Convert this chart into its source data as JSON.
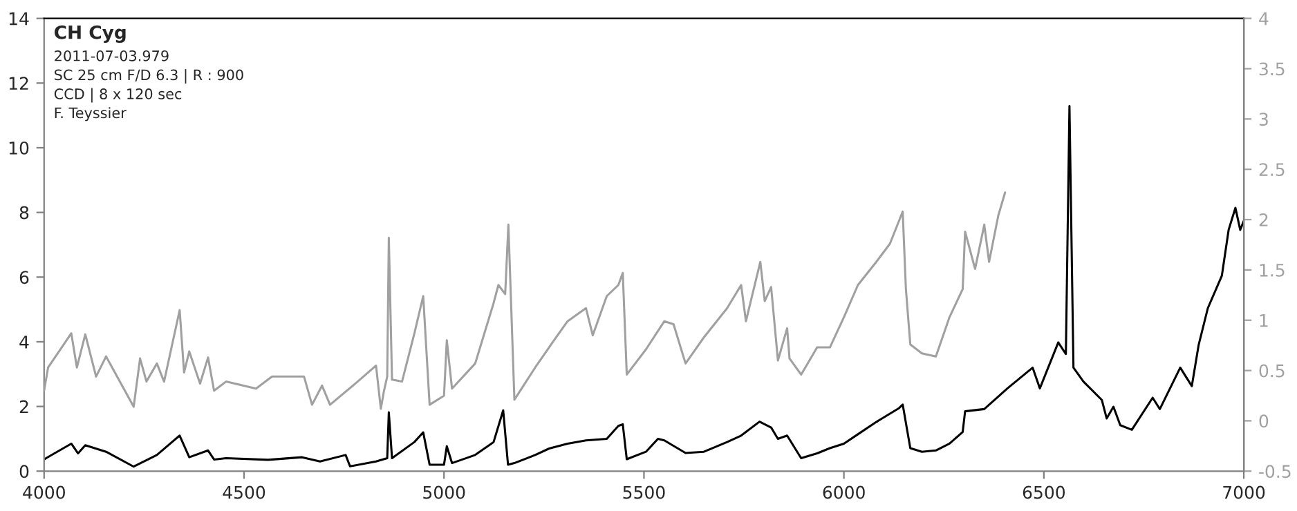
{
  "chart_data": {
    "type": "line",
    "title": "CH Cyg",
    "annotations": [
      "2011-07-03.979",
      "SC 25 cm F/D 6.3 | R : 900",
      "CCD | 8 x 120 sec",
      "F. Teyssier"
    ],
    "xlim": [
      4000,
      7000
    ],
    "xticks": [
      4000,
      4500,
      5000,
      5500,
      6000,
      6500,
      7000
    ],
    "ylim": [
      0,
      14
    ],
    "yticks": [
      0,
      2,
      4,
      6,
      8,
      10,
      12,
      14
    ],
    "y2lim": [
      -0.5,
      4
    ],
    "y2ticks": [
      {
        "value": -0.5,
        "label": "-0.5"
      },
      0,
      0.5,
      1,
      1.5,
      2,
      2.5,
      3,
      3.5,
      4
    ],
    "grid": false,
    "legend": false,
    "series": [
      {
        "color": "#000000",
        "x": [
          4000,
          4005,
          4068,
          4085,
          4103,
          4155,
          4224,
          4282,
          4339,
          4363,
          4410,
          4425,
          4455,
          4560,
          4645,
          4690,
          4754,
          4765,
          4830,
          4858,
          4862,
          4870,
          4926,
          4948,
          4964,
          5000,
          5007,
          5020,
          5078,
          5124,
          5148,
          5160,
          5176,
          5228,
          5263,
          5309,
          5355,
          5407,
          5436,
          5447,
          5457,
          5505,
          5535,
          5551,
          5604,
          5650,
          5708,
          5743,
          5789,
          5818,
          5835,
          5858,
          5893,
          5933,
          5965,
          6000,
          6035,
          6081,
          6138,
          6147,
          6166,
          6195,
          6230,
          6264,
          6297,
          6303,
          6351,
          6409,
          6472,
          6490,
          6536,
          6555,
          6564,
          6574,
          6599,
          6645,
          6657,
          6674,
          6691,
          6720,
          6772,
          6790,
          6841,
          6870,
          6887,
          6910,
          6945,
          6962,
          6979,
          6991,
          7000
        ],
        "values": [
          0.36,
          0.4,
          0.85,
          0.55,
          0.8,
          0.6,
          0.14,
          0.5,
          1.1,
          0.43,
          0.64,
          0.36,
          0.4,
          0.35,
          0.43,
          0.3,
          0.5,
          0.15,
          0.3,
          0.4,
          1.82,
          0.4,
          0.9,
          1.2,
          0.2,
          0.2,
          0.77,
          0.25,
          0.5,
          0.9,
          1.88,
          0.2,
          0.25,
          0.5,
          0.7,
          0.85,
          0.95,
          1.0,
          1.4,
          1.45,
          0.37,
          0.6,
          1.0,
          0.95,
          0.56,
          0.6,
          0.9,
          1.1,
          1.53,
          1.35,
          1.0,
          1.1,
          0.4,
          0.55,
          0.71,
          0.85,
          1.14,
          1.52,
          1.95,
          2.06,
          0.71,
          0.6,
          0.64,
          0.85,
          1.21,
          1.85,
          1.92,
          2.56,
          3.2,
          2.56,
          3.98,
          3.62,
          11.29,
          3.2,
          2.77,
          2.2,
          1.63,
          1.99,
          1.42,
          1.28,
          2.27,
          1.92,
          3.2,
          2.63,
          3.9,
          5.04,
          6.04,
          7.46,
          8.14,
          7.46,
          7.74
        ]
      },
      {
        "color": "#a0a0a0",
        "axis": "y2",
        "x": [
          4000,
          4010,
          4068,
          4082,
          4103,
          4130,
          4155,
          4224,
          4240,
          4256,
          4282,
          4300,
          4339,
          4350,
          4363,
          4390,
          4410,
          4425,
          4455,
          4530,
          4570,
          4650,
          4670,
          4695,
          4715,
          4784,
          4830,
          4842,
          4850,
          4858,
          4862,
          4870,
          4895,
          4926,
          4948,
          4964,
          5000,
          5007,
          5020,
          5078,
          5124,
          5136,
          5153,
          5161,
          5176,
          5228,
          5275,
          5309,
          5355,
          5372,
          5407,
          5436,
          5447,
          5457,
          5505,
          5551,
          5574,
          5604,
          5650,
          5708,
          5743,
          5755,
          5791,
          5802,
          5818,
          5835,
          5858,
          5864,
          5893,
          5933,
          5965,
          6000,
          6035,
          6081,
          6115,
          6138,
          6147,
          6155,
          6166,
          6195,
          6230,
          6264,
          6297,
          6303,
          6328,
          6351,
          6363,
          6386,
          6403
        ],
        "values": [
          0.3,
          0.53,
          0.87,
          0.53,
          0.86,
          0.44,
          0.64,
          0.14,
          0.62,
          0.39,
          0.57,
          0.39,
          1.1,
          0.48,
          0.69,
          0.37,
          0.63,
          0.3,
          0.39,
          0.32,
          0.44,
          0.44,
          0.16,
          0.35,
          0.16,
          0.39,
          0.55,
          0.12,
          0.3,
          0.44,
          1.82,
          0.41,
          0.39,
          0.87,
          1.24,
          0.16,
          0.25,
          0.8,
          0.32,
          0.57,
          1.17,
          1.35,
          1.26,
          1.95,
          0.21,
          0.53,
          0.8,
          0.99,
          1.12,
          0.85,
          1.24,
          1.35,
          1.47,
          0.46,
          0.71,
          0.99,
          0.96,
          0.57,
          0.83,
          1.12,
          1.35,
          0.99,
          1.58,
          1.19,
          1.33,
          0.6,
          0.92,
          0.62,
          0.46,
          0.73,
          0.73,
          1.03,
          1.35,
          1.58,
          1.76,
          1.99,
          2.08,
          1.31,
          0.76,
          0.67,
          0.64,
          1.03,
          1.31,
          1.88,
          1.51,
          1.95,
          1.58,
          2.04,
          2.27
        ]
      }
    ]
  }
}
